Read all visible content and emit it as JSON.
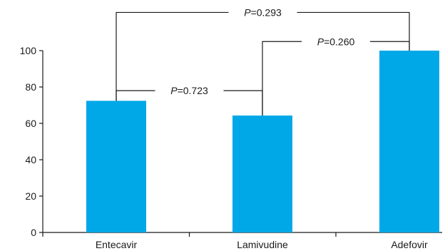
{
  "chart_data": {
    "type": "bar",
    "categories": [
      "Entecavir",
      "Lamivudine",
      "Adefovir"
    ],
    "values": [
      72.4,
      64.3,
      100
    ],
    "ylim": [
      0,
      100
    ],
    "yticks": [
      0,
      20,
      40,
      60,
      80,
      100
    ],
    "bar_color": "#00A8E8",
    "grid": false,
    "comparisons": [
      {
        "from": 0,
        "to": 1,
        "p_prefix": "P",
        "p_value": "=0.723",
        "level": 78
      },
      {
        "from": 1,
        "to": 2,
        "p_prefix": "P",
        "p_value": "=0.260",
        "level": 105
      },
      {
        "from": 0,
        "to": 2,
        "p_prefix": "P",
        "p_value": "=0.293",
        "level": 121
      }
    ]
  }
}
